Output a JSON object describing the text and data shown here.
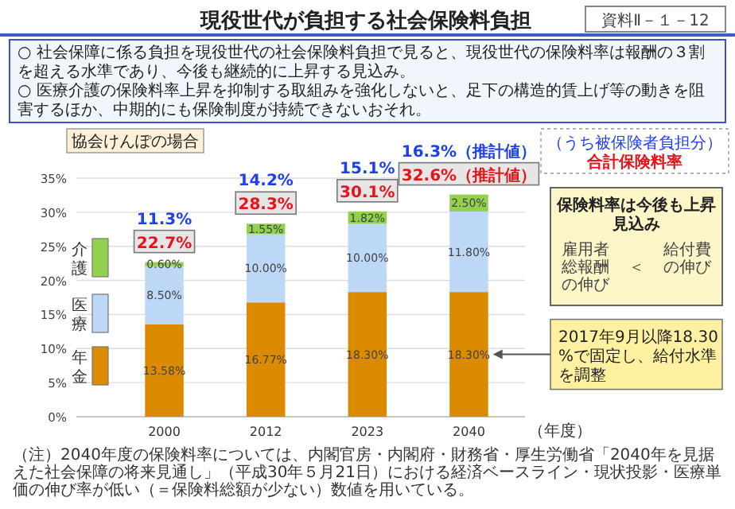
{
  "chart_data": {
    "type": "bar",
    "stacked": true,
    "title": "現役世代が負担する社会保険料負担",
    "subtitle": "協会けんぽの場合",
    "xlabel": "（年度）",
    "categories": [
      "2000",
      "2012",
      "2023",
      "2040"
    ],
    "series": [
      {
        "name": "年金",
        "color": "#dc8a00",
        "values": [
          13.58,
          16.77,
          18.3,
          18.3
        ],
        "value_labels": [
          "13.58%",
          "16.77%",
          "18.30%",
          "18.30%"
        ]
      },
      {
        "name": "医療",
        "color": "#bdd7f7",
        "values": [
          8.5,
          10.0,
          10.0,
          11.8
        ],
        "value_labels": [
          "8.50%",
          "10.00%",
          "10.00%",
          "11.80%"
        ]
      },
      {
        "name": "介護",
        "color": "#92d050",
        "values": [
          0.6,
          1.55,
          1.82,
          2.5
        ],
        "value_labels": [
          "0.60%",
          "1.55%",
          "1.82%",
          "2.50%"
        ]
      }
    ],
    "totals": [
      "22.7%",
      "28.3%",
      "30.1%",
      "32.6%（推計値）"
    ],
    "ylim": [
      0,
      35
    ],
    "yticks": [
      {
        "value": 0,
        "label": "0%"
      },
      {
        "value": 5,
        "label": "5%"
      },
      {
        "value": 10,
        "label": "10%"
      },
      {
        "value": 15,
        "label": "15%"
      },
      {
        "value": 20,
        "label": "20%"
      },
      {
        "value": 25,
        "label": "25%"
      },
      {
        "value": 30,
        "label": "30%"
      },
      {
        "value": 35,
        "label": "35%"
      }
    ],
    "grid": "y",
    "legend": "left",
    "annotations": [
      "資料Ⅱ－１－12",
      "○ 社会保障に係る負担を現役世代の社会保険料負担で見ると、現役世代の保険料率は報酬の３割を超える水準であり、今後も継続的に上昇する見込み。",
      "○ 医療介護の保険料率上昇を抑制する取組みを強化しないと、足下の構造的賃上げ等の動きを阻害するほか、中期的にも保険制度が持続できないおそれ。",
      "（うち被保険者負担分）",
      "合計保険料率",
      "保険料率は今後も上昇見込み",
      "雇用者総報酬の伸び",
      "＜",
      "給付費の伸び",
      {
        "text": "11.3%",
        "x": "2000",
        "y": 22.68
      },
      {
        "text": "14.2%",
        "x": "2012",
        "y": 28.32
      },
      {
        "text": "15.1%",
        "x": "2023",
        "y": 30.12
      },
      {
        "text": "16.3%（推計値）",
        "x": "2040",
        "y": 32.6
      },
      "2017年9月以降18.30%で固定し、給付水準を調整",
      "（注）2040年度の保険料率については、内閣官房・内閣府・財務省・厚生労働省「2040年を見据えた社会保障の将来見通し」（平成30年５月21日）における経済ベースライン・現状投影・医療単価の伸び率が低い（＝保険料総額が少ない）数値を用いている。"
    ]
  }
}
